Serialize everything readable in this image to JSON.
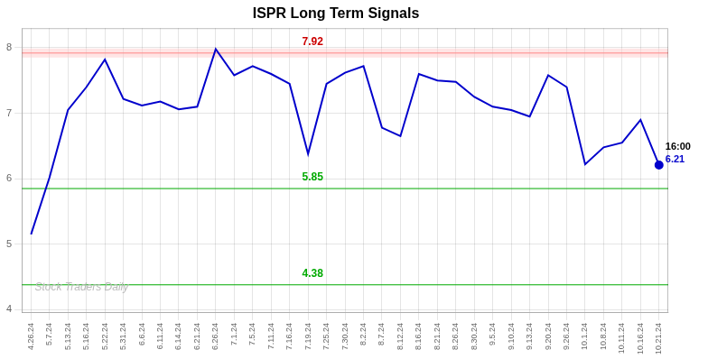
{
  "chart_data": {
    "type": "line",
    "title": "ISPR Long Term Signals",
    "categories": [
      "4.26.24",
      "5.7.24",
      "5.13.24",
      "5.16.24",
      "5.22.24",
      "5.31.24",
      "6.6.24",
      "6.11.24",
      "6.14.24",
      "6.21.24",
      "6.26.24",
      "7.1.24",
      "7.5.24",
      "7.11.24",
      "7.16.24",
      "7.19.24",
      "7.25.24",
      "7.30.24",
      "8.2.24",
      "8.7.24",
      "8.12.24",
      "8.16.24",
      "8.21.24",
      "8.26.24",
      "8.30.24",
      "9.5.24",
      "9.10.24",
      "9.13.24",
      "9.20.24",
      "9.26.24",
      "10.1.24",
      "10.8.24",
      "10.11.24",
      "10.16.24",
      "10.21.24"
    ],
    "values": [
      5.15,
      6.02,
      7.05,
      7.4,
      7.82,
      7.22,
      7.12,
      7.18,
      7.06,
      7.1,
      7.98,
      7.58,
      7.72,
      7.6,
      7.45,
      6.38,
      7.45,
      7.62,
      7.72,
      6.78,
      6.65,
      7.6,
      7.5,
      7.48,
      7.25,
      7.1,
      7.05,
      6.95,
      7.58,
      7.4,
      6.22,
      6.48,
      6.55,
      6.9,
      6.21
    ],
    "color": "#0000CC",
    "ylim": [
      3.95,
      8.3
    ],
    "yticks": [
      4,
      5,
      6,
      7,
      8
    ],
    "grid": true,
    "reference_lines": [
      {
        "y": 7.92,
        "label": "7.92",
        "color": "#FF8888",
        "label_color": "#CC0000",
        "band_color": "#FFCCCC"
      },
      {
        "y": 5.85,
        "label": "5.85",
        "color": "#00AA00",
        "label_color": "#00AA00"
      },
      {
        "y": 4.38,
        "label": "4.38",
        "color": "#00AA00",
        "label_color": "#00AA00"
      }
    ],
    "annotations": [
      {
        "text": "16:00",
        "x": "10.21.24",
        "y": 6.21,
        "color": "#000000"
      },
      {
        "text": "6.21",
        "x": "10.21.24",
        "y": 6.21,
        "color": "#0000CC"
      }
    ],
    "watermark": {
      "text": "Stock Traders Daily",
      "color": "#BBBBBB"
    }
  }
}
